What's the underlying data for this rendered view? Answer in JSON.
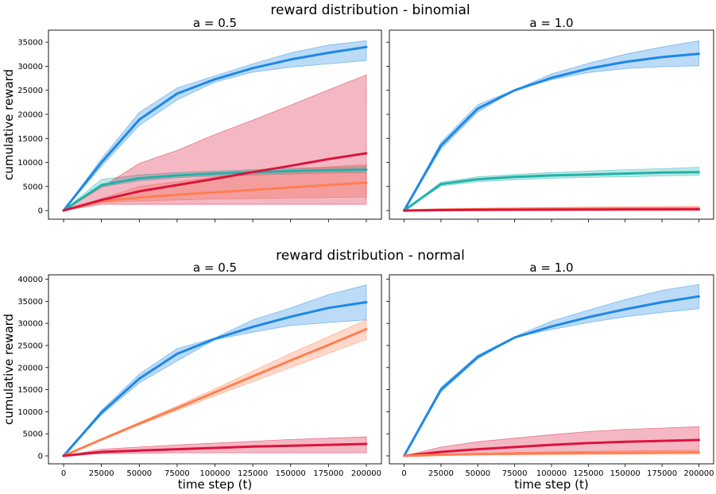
{
  "chart_data": {
    "type": "line",
    "x": [
      0,
      25000,
      50000,
      75000,
      100000,
      125000,
      150000,
      175000,
      200000
    ],
    "xlim": [
      -10000,
      210000
    ],
    "xticks": [
      0,
      25000,
      50000,
      75000,
      100000,
      125000,
      150000,
      175000,
      200000
    ],
    "series_colors": [
      "#1e88e5",
      "#ff7f50",
      "#dc143c",
      "#20b2aa"
    ],
    "rows": [
      {
        "title": "reward distribution - binomial",
        "ylabel": "cumulative reward",
        "xlabel": "",
        "ylim": [
          -1800,
          37500
        ],
        "yticks": [
          0,
          5000,
          10000,
          15000,
          20000,
          25000,
          30000,
          35000
        ],
        "panels": [
          {
            "title": "a = 0.5",
            "series": [
              {
                "color": "#1e88e5",
                "values": [
                  0,
                  10000,
                  18900,
                  24300,
                  27300,
                  29600,
                  31400,
                  32800,
                  34000
                ],
                "lower": [
                  0,
                  9200,
                  17700,
                  23000,
                  26700,
                  28800,
                  29800,
                  30500,
                  31200
                ],
                "upper": [
                  0,
                  10800,
                  20400,
                  25500,
                  28000,
                  30500,
                  32800,
                  34400,
                  35300
                ]
              },
              {
                "color": "#20b2aa",
                "values": [
                  0,
                  5300,
                  6700,
                  7300,
                  7700,
                  8000,
                  8200,
                  8400,
                  8500
                ],
                "lower": [
                  0,
                  4900,
                  6200,
                  6800,
                  7200,
                  7400,
                  7600,
                  7800,
                  7900
                ],
                "upper": [
                  0,
                  6500,
                  7400,
                  7900,
                  8200,
                  8500,
                  8800,
                  9000,
                  9200
                ]
              },
              {
                "color": "#ff7f50",
                "values": [
                  0,
                  2000,
                  2700,
                  3300,
                  3800,
                  4300,
                  4800,
                  5300,
                  5800
                ],
                "lower": [
                  0,
                  1700,
                  2000,
                  2200,
                  2400,
                  2500,
                  2600,
                  2700,
                  2800
                ],
                "upper": [
                  0,
                  2500,
                  5000,
                  6000,
                  7000,
                  7800,
                  8500,
                  9100,
                  9600
                ]
              },
              {
                "color": "#dc143c",
                "values": [
                  0,
                  2200,
                  4000,
                  5300,
                  6600,
                  8000,
                  9300,
                  10700,
                  11900
                ],
                "lower": [
                  0,
                  1300,
                  1300,
                  1300,
                  1300,
                  1300,
                  1300,
                  1300,
                  1300
                ],
                "upper": [
                  0,
                  4800,
                  9800,
                  12500,
                  15800,
                  18800,
                  21900,
                  25100,
                  28200
                ]
              }
            ]
          },
          {
            "title": "a = 1.0",
            "series": [
              {
                "color": "#1e88e5",
                "values": [
                  0,
                  13500,
                  21200,
                  25000,
                  27600,
                  29500,
                  30900,
                  31900,
                  32600
                ],
                "lower": [
                  0,
                  12800,
                  20500,
                  25000,
                  27200,
                  28700,
                  29500,
                  29900,
                  30100
                ],
                "upper": [
                  0,
                  14200,
                  22000,
                  25100,
                  28400,
                  30600,
                  32500,
                  34000,
                  35300
                ]
              },
              {
                "color": "#20b2aa",
                "values": [
                  0,
                  5500,
                  6500,
                  7000,
                  7300,
                  7500,
                  7700,
                  7900,
                  8000
                ],
                "lower": [
                  0,
                  5100,
                  6000,
                  6400,
                  6700,
                  6900,
                  7000,
                  7200,
                  7300
                ],
                "upper": [
                  0,
                  5900,
                  7000,
                  7500,
                  7900,
                  8200,
                  8500,
                  8700,
                  9000
                ]
              },
              {
                "color": "#ff7f50",
                "values": [
                  0,
                  180,
                  260,
                  320,
                  360,
                  400,
                  430,
                  460,
                  480
                ],
                "lower": [
                  0,
                  60,
                  100,
                  110,
                  120,
                  130,
                  140,
                  150,
                  150
                ],
                "upper": [
                  0,
                  350,
                  500,
                  600,
                  660,
                  720,
                  780,
                  840,
                  900
                ]
              },
              {
                "color": "#dc143c",
                "values": [
                  0,
                  100,
                  130,
                  160,
                  180,
                  200,
                  220,
                  230,
                  250
                ],
                "lower": [
                  0,
                  20,
                  30,
                  40,
                  50,
                  50,
                  60,
                  60,
                  60
                ],
                "upper": [
                  0,
                  220,
                  300,
                  360,
                  400,
                  440,
                  480,
                  510,
                  540
                ]
              }
            ]
          }
        ]
      },
      {
        "title": "reward distribution - normal",
        "ylabel": "cumulative reward",
        "xlabel": "time step (t)",
        "ylim": [
          -1800,
          41000
        ],
        "yticks": [
          0,
          5000,
          10000,
          15000,
          20000,
          25000,
          30000,
          35000,
          40000
        ],
        "panels": [
          {
            "title": "a = 0.5",
            "series": [
              {
                "color": "#1e88e5",
                "values": [
                  0,
                  9800,
                  17500,
                  23100,
                  26500,
                  29200,
                  31500,
                  33500,
                  34800
                ],
                "lower": [
                  0,
                  9300,
                  16500,
                  21500,
                  26300,
                  28000,
                  29500,
                  30200,
                  30800
                ],
                "upper": [
                  0,
                  10300,
                  18500,
                  24300,
                  26700,
                  30800,
                  33500,
                  36500,
                  38700
                ]
              },
              {
                "color": "#ff7f50",
                "values": [
                  0,
                  3700,
                  7300,
                  10800,
                  14400,
                  18000,
                  21600,
                  25100,
                  28700
                ],
                "lower": [
                  0,
                  3500,
                  7000,
                  10300,
                  13600,
                  16800,
                  20000,
                  23200,
                  26400
                ],
                "upper": [
                  0,
                  3900,
                  7600,
                  11300,
                  15200,
                  19200,
                  23200,
                  27000,
                  30800
                ]
              },
              {
                "color": "#dc143c",
                "values": [
                  0,
                  900,
                  1200,
                  1500,
                  1800,
                  2100,
                  2300,
                  2500,
                  2700
                ],
                "lower": [
                  0,
                  500,
                  600,
                  700,
                  700,
                  700,
                  700,
                  700,
                  700
                ],
                "upper": [
                  0,
                  1500,
                  2000,
                  2500,
                  2900,
                  3300,
                  3700,
                  4000,
                  4300
                ]
              }
            ]
          },
          {
            "title": "a = 1.0",
            "series": [
              {
                "color": "#1e88e5",
                "values": [
                  0,
                  15000,
                  22400,
                  26800,
                  29300,
                  31400,
                  33200,
                  34800,
                  36100
                ],
                "lower": [
                  0,
                  14500,
                  22000,
                  26800,
                  28600,
                  30200,
                  31500,
                  32500,
                  33300
                ],
                "upper": [
                  0,
                  15500,
                  22800,
                  27000,
                  30500,
                  33000,
                  35400,
                  37500,
                  38800
                ]
              },
              {
                "color": "#dc143c",
                "values": [
                  0,
                  900,
                  1500,
                  2000,
                  2500,
                  2900,
                  3200,
                  3400,
                  3600
                ],
                "lower": [
                  0,
                  350,
                  550,
                  750,
                  900,
                  1000,
                  1100,
                  1200,
                  1300
                ],
                "upper": [
                  0,
                  2000,
                  3200,
                  4000,
                  4800,
                  5500,
                  6000,
                  6300,
                  6600
                ]
              },
              {
                "color": "#ff7f50",
                "values": [
                  0,
                  250,
                  400,
                  500,
                  600,
                  650,
                  700,
                  750,
                  800
                ],
                "lower": [
                  0,
                  100,
                  200,
                  250,
                  300,
                  330,
                  360,
                  380,
                  400
                ],
                "upper": [
                  0,
                  400,
                  600,
                  750,
                  900,
                  1000,
                  1100,
                  1150,
                  1200
                ]
              }
            ]
          }
        ]
      }
    ]
  }
}
